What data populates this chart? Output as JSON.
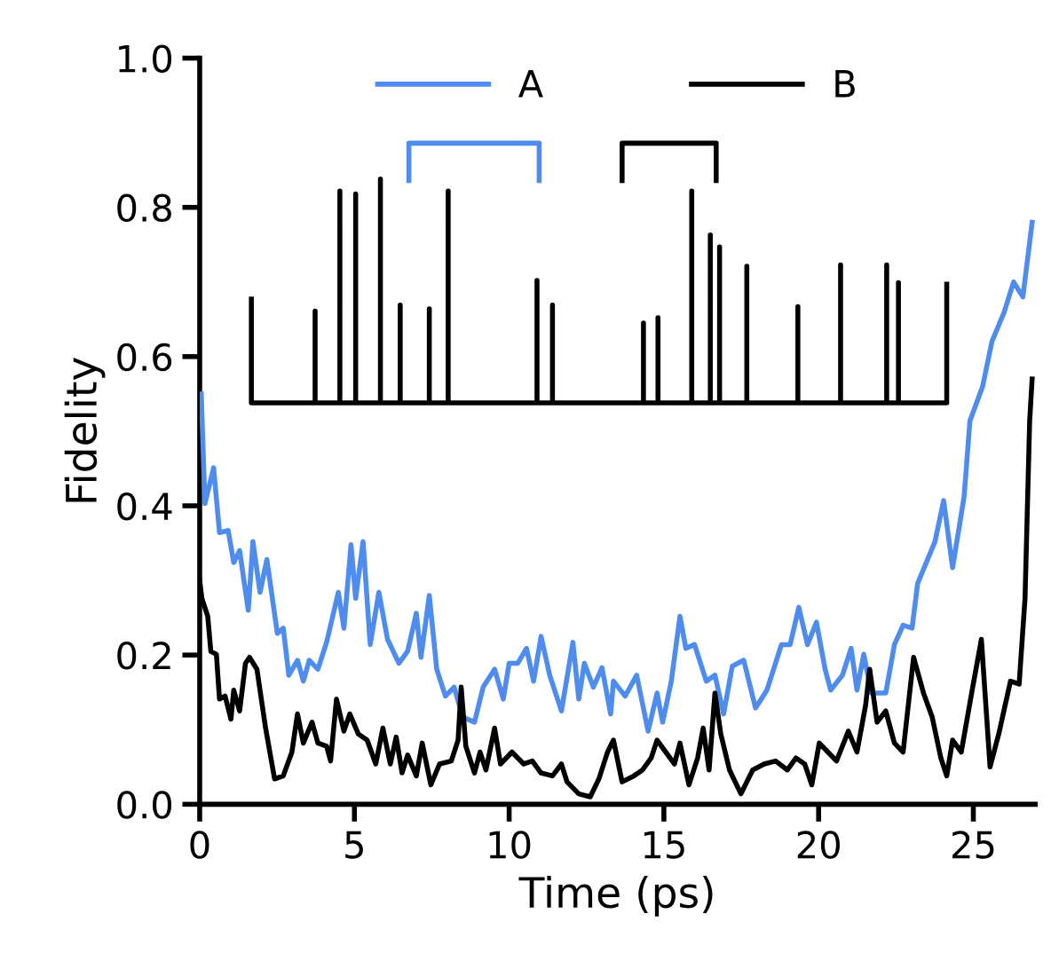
{
  "chart_data": {
    "type": "line",
    "xlabel": "Time (ps)",
    "ylabel": "Fidelity",
    "xlim": [
      0,
      27
    ],
    "ylim": [
      0,
      1.0
    ],
    "xticks": [
      0,
      5,
      10,
      15,
      20,
      25
    ],
    "yticks": [
      {
        "value": 0,
        "label": "0.0"
      },
      {
        "value": 0.2,
        "label": "0.2"
      },
      {
        "value": 0.4,
        "label": "0.4"
      },
      {
        "value": 0.6,
        "label": "0.6"
      },
      {
        "value": 0.8,
        "label": "0.8"
      },
      {
        "value": 1.0,
        "label": "1.0"
      }
    ],
    "legend": "top",
    "grid": false,
    "marker": "none",
    "line_style": "solid",
    "series": [
      {
        "name": "A",
        "color": "#4f8cf0",
        "x": [
          0.05,
          0.17,
          0.45,
          0.64,
          0.92,
          1.1,
          1.29,
          1.57,
          1.72,
          1.95,
          2.17,
          2.51,
          2.7,
          2.88,
          3.16,
          3.35,
          3.54,
          3.82,
          4.1,
          4.48,
          4.66,
          4.89,
          5.04,
          5.28,
          5.51,
          5.79,
          6.07,
          6.44,
          6.72,
          7.0,
          7.15,
          7.42,
          7.66,
          7.94,
          8.22,
          8.5,
          8.88,
          9.16,
          9.53,
          9.81,
          10.0,
          10.28,
          10.56,
          10.79,
          11.03,
          11.31,
          11.69,
          12.06,
          12.25,
          12.43,
          12.72,
          13.0,
          13.28,
          13.37,
          13.75,
          14.12,
          14.49,
          14.78,
          14.96,
          15.24,
          15.52,
          15.71,
          15.99,
          16.37,
          16.65,
          16.93,
          17.21,
          17.58,
          17.96,
          18.33,
          18.8,
          19.08,
          19.36,
          19.64,
          19.93,
          20.21,
          20.39,
          20.77,
          21.05,
          21.24,
          21.46,
          21.7,
          22.17,
          22.45,
          22.73,
          23.02,
          23.2,
          23.48,
          23.76,
          24.04,
          24.33,
          24.7,
          24.89,
          25.3,
          25.6,
          26.0,
          26.3,
          26.6,
          26.9
        ],
        "values": [
          0.55,
          0.403,
          0.451,
          0.364,
          0.367,
          0.324,
          0.34,
          0.26,
          0.352,
          0.284,
          0.328,
          0.229,
          0.236,
          0.173,
          0.193,
          0.165,
          0.193,
          0.181,
          0.217,
          0.284,
          0.236,
          0.348,
          0.276,
          0.352,
          0.214,
          0.284,
          0.221,
          0.189,
          0.205,
          0.256,
          0.197,
          0.28,
          0.181,
          0.145,
          0.157,
          0.117,
          0.11,
          0.157,
          0.181,
          0.141,
          0.189,
          0.189,
          0.209,
          0.165,
          0.225,
          0.173,
          0.125,
          0.217,
          0.141,
          0.189,
          0.157,
          0.183,
          0.121,
          0.165,
          0.145,
          0.173,
          0.098,
          0.149,
          0.11,
          0.165,
          0.252,
          0.209,
          0.214,
          0.165,
          0.173,
          0.121,
          0.185,
          0.193,
          0.129,
          0.153,
          0.214,
          0.214,
          0.264,
          0.214,
          0.244,
          0.181,
          0.153,
          0.173,
          0.209,
          0.153,
          0.201,
          0.149,
          0.149,
          0.214,
          0.24,
          0.236,
          0.296,
          0.324,
          0.352,
          0.407,
          0.317,
          0.412,
          0.514,
          0.56,
          0.62,
          0.66,
          0.7,
          0.68,
          0.78
        ]
      },
      {
        "name": "B",
        "color": "#000000",
        "x": [
          0,
          0.07,
          0.26,
          0.36,
          0.54,
          0.64,
          0.82,
          1.01,
          1.1,
          1.29,
          1.48,
          1.61,
          1.85,
          2.13,
          2.42,
          2.7,
          2.98,
          3.16,
          3.35,
          3.63,
          3.82,
          4.1,
          4.23,
          4.42,
          4.66,
          4.85,
          5.13,
          5.41,
          5.69,
          5.92,
          6.16,
          6.35,
          6.54,
          6.72,
          7.0,
          7.19,
          7.47,
          7.75,
          8.13,
          8.35,
          8.45,
          8.6,
          8.88,
          9.06,
          9.25,
          9.53,
          9.72,
          10.09,
          10.47,
          10.75,
          11.03,
          11.4,
          11.69,
          11.87,
          12.25,
          12.62,
          12.9,
          13.18,
          13.37,
          13.65,
          14.03,
          14.31,
          14.59,
          14.78,
          15.06,
          15.34,
          15.52,
          15.81,
          16.09,
          16.27,
          16.46,
          16.65,
          16.84,
          17.12,
          17.49,
          17.87,
          18.24,
          18.61,
          18.99,
          19.27,
          19.55,
          19.78,
          20.02,
          20.3,
          20.58,
          20.96,
          21.24,
          21.52,
          21.65,
          21.89,
          22.17,
          22.45,
          22.73,
          23.07,
          23.39,
          23.67,
          23.95,
          24.14,
          24.33,
          24.61,
          24.98,
          25.26,
          25.54,
          25.82,
          26.2,
          26.48,
          26.67,
          26.82,
          26.9
        ],
        "values": [
          0.3,
          0.276,
          0.252,
          0.205,
          0.201,
          0.141,
          0.145,
          0.114,
          0.153,
          0.125,
          0.189,
          0.197,
          0.181,
          0.102,
          0.034,
          0.038,
          0.07,
          0.121,
          0.082,
          0.11,
          0.082,
          0.078,
          0.058,
          0.141,
          0.098,
          0.121,
          0.094,
          0.086,
          0.054,
          0.102,
          0.054,
          0.09,
          0.042,
          0.066,
          0.038,
          0.082,
          0.026,
          0.054,
          0.058,
          0.086,
          0.157,
          0.078,
          0.042,
          0.07,
          0.046,
          0.102,
          0.054,
          0.07,
          0.054,
          0.058,
          0.042,
          0.038,
          0.054,
          0.03,
          0.014,
          0.01,
          0.034,
          0.07,
          0.086,
          0.03,
          0.038,
          0.046,
          0.062,
          0.086,
          0.07,
          0.054,
          0.082,
          0.026,
          0.062,
          0.102,
          0.046,
          0.149,
          0.094,
          0.046,
          0.014,
          0.046,
          0.054,
          0.058,
          0.046,
          0.062,
          0.054,
          0.026,
          0.082,
          0.07,
          0.058,
          0.098,
          0.07,
          0.133,
          0.181,
          0.11,
          0.125,
          0.082,
          0.07,
          0.197,
          0.149,
          0.117,
          0.062,
          0.038,
          0.086,
          0.07,
          0.157,
          0.221,
          0.05,
          0.094,
          0.165,
          0.161,
          0.276,
          0.514,
          0.57
        ]
      },
      {
        "color": "#000000",
        "x": [
          1.67,
          1.67,
          3.73,
          3.73,
          3.73,
          4.53,
          4.53,
          4.53,
          5.04,
          5.04,
          5.04,
          5.84,
          5.84,
          5.84,
          6.48,
          6.48,
          6.48,
          7.42,
          7.42,
          7.42,
          8.03,
          8.03,
          8.03,
          10.9,
          10.9,
          10.9,
          11.4,
          11.4,
          11.4,
          14.34,
          14.34,
          14.34,
          14.81,
          14.81,
          14.81,
          15.9,
          15.9,
          15.9,
          16.5,
          16.5,
          16.5,
          16.8,
          16.8,
          16.8,
          17.68,
          17.68,
          17.68,
          19.33,
          19.33,
          19.33,
          20.71,
          20.71,
          20.71,
          22.2,
          22.2,
          22.2,
          22.58,
          22.58,
          22.58,
          24.14,
          24.14
        ],
        "values": [
          0.677,
          0.538,
          0.538,
          0.661,
          0.538,
          0.538,
          0.822,
          0.538,
          0.538,
          0.818,
          0.538,
          0.538,
          0.838,
          0.538,
          0.538,
          0.669,
          0.538,
          0.538,
          0.664,
          0.538,
          0.538,
          0.822,
          0.538,
          0.538,
          0.702,
          0.538,
          0.538,
          0.669,
          0.538,
          0.538,
          0.645,
          0.538,
          0.538,
          0.652,
          0.538,
          0.538,
          0.822,
          0.538,
          0.538,
          0.763,
          0.538,
          0.538,
          0.747,
          0.538,
          0.538,
          0.721,
          0.538,
          0.538,
          0.667,
          0.538,
          0.538,
          0.723,
          0.538,
          0.538,
          0.723,
          0.538,
          0.538,
          0.699,
          0.538,
          0.538,
          0.697
        ]
      },
      {
        "color": "#4f8cf0",
        "x": [
          6.76,
          6.76,
          10.97,
          10.97
        ],
        "values": [
          0.836,
          0.886,
          0.886,
          0.836
        ]
      },
      {
        "color": "#000000",
        "x": [
          13.65,
          13.65,
          16.69,
          16.69
        ],
        "values": [
          0.836,
          0.886,
          0.886,
          0.836
        ]
      }
    ]
  }
}
